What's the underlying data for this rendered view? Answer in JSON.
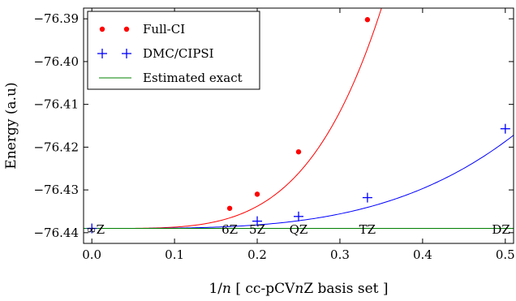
{
  "chart_data": {
    "type": "line",
    "xlabel": "1/n [ cc-pCVnZ basis set ]",
    "ylabel": "Energy (a.u)",
    "xlim": [
      -0.01,
      0.51
    ],
    "ylim": [
      -76.4425,
      -76.3875
    ],
    "x_ticks": [
      "0.0",
      "0.1",
      "0.2",
      "0.3",
      "0.4",
      "0.5"
    ],
    "x_tick_values": [
      0.0,
      0.1,
      0.2,
      0.3,
      0.4,
      0.5
    ],
    "y_ticks": [
      "−76.44",
      "−76.43",
      "−76.42",
      "−76.41",
      "−76.40",
      "−76.39"
    ],
    "y_tick_values": [
      -76.44,
      -76.43,
      -76.42,
      -76.41,
      -76.4,
      -76.39
    ],
    "basis_labels": [
      {
        "x": 0.0,
        "text": "∞Z"
      },
      {
        "x": 0.1667,
        "text": "6Z"
      },
      {
        "x": 0.2,
        "text": "5Z"
      },
      {
        "x": 0.25,
        "text": "QZ"
      },
      {
        "x": 0.3333,
        "text": "TZ"
      },
      {
        "x": 0.5,
        "text": "DZ"
      }
    ],
    "grid": false,
    "legend_position": "upper-left",
    "series": [
      {
        "name": "Full-CI",
        "color": "#ff0000",
        "marker": "dot",
        "points": [
          {
            "x": 0.1667,
            "y": -76.4343
          },
          {
            "x": 0.2,
            "y": -76.431
          },
          {
            "x": 0.25,
            "y": -76.4211
          },
          {
            "x": 0.3333,
            "y": -76.3902
          }
        ],
        "fit": {
          "e0": -76.439,
          "a": 3.8,
          "p": 4.1
        }
      },
      {
        "name": "DMC/CIPSI",
        "color": "#0000ff",
        "marker": "plus",
        "points": [
          {
            "x": 0.0,
            "y": -76.439
          },
          {
            "x": 0.2,
            "y": -76.4373
          },
          {
            "x": 0.25,
            "y": -76.4362
          },
          {
            "x": 0.3333,
            "y": -76.4318
          },
          {
            "x": 0.5,
            "y": -76.4157
          }
        ],
        "fit": {
          "e0": -76.439,
          "a": 0.23,
          "p": 3.5
        }
      },
      {
        "name": "Estimated exact",
        "color": "#008000",
        "marker": "none",
        "value": -76.439
      }
    ]
  }
}
